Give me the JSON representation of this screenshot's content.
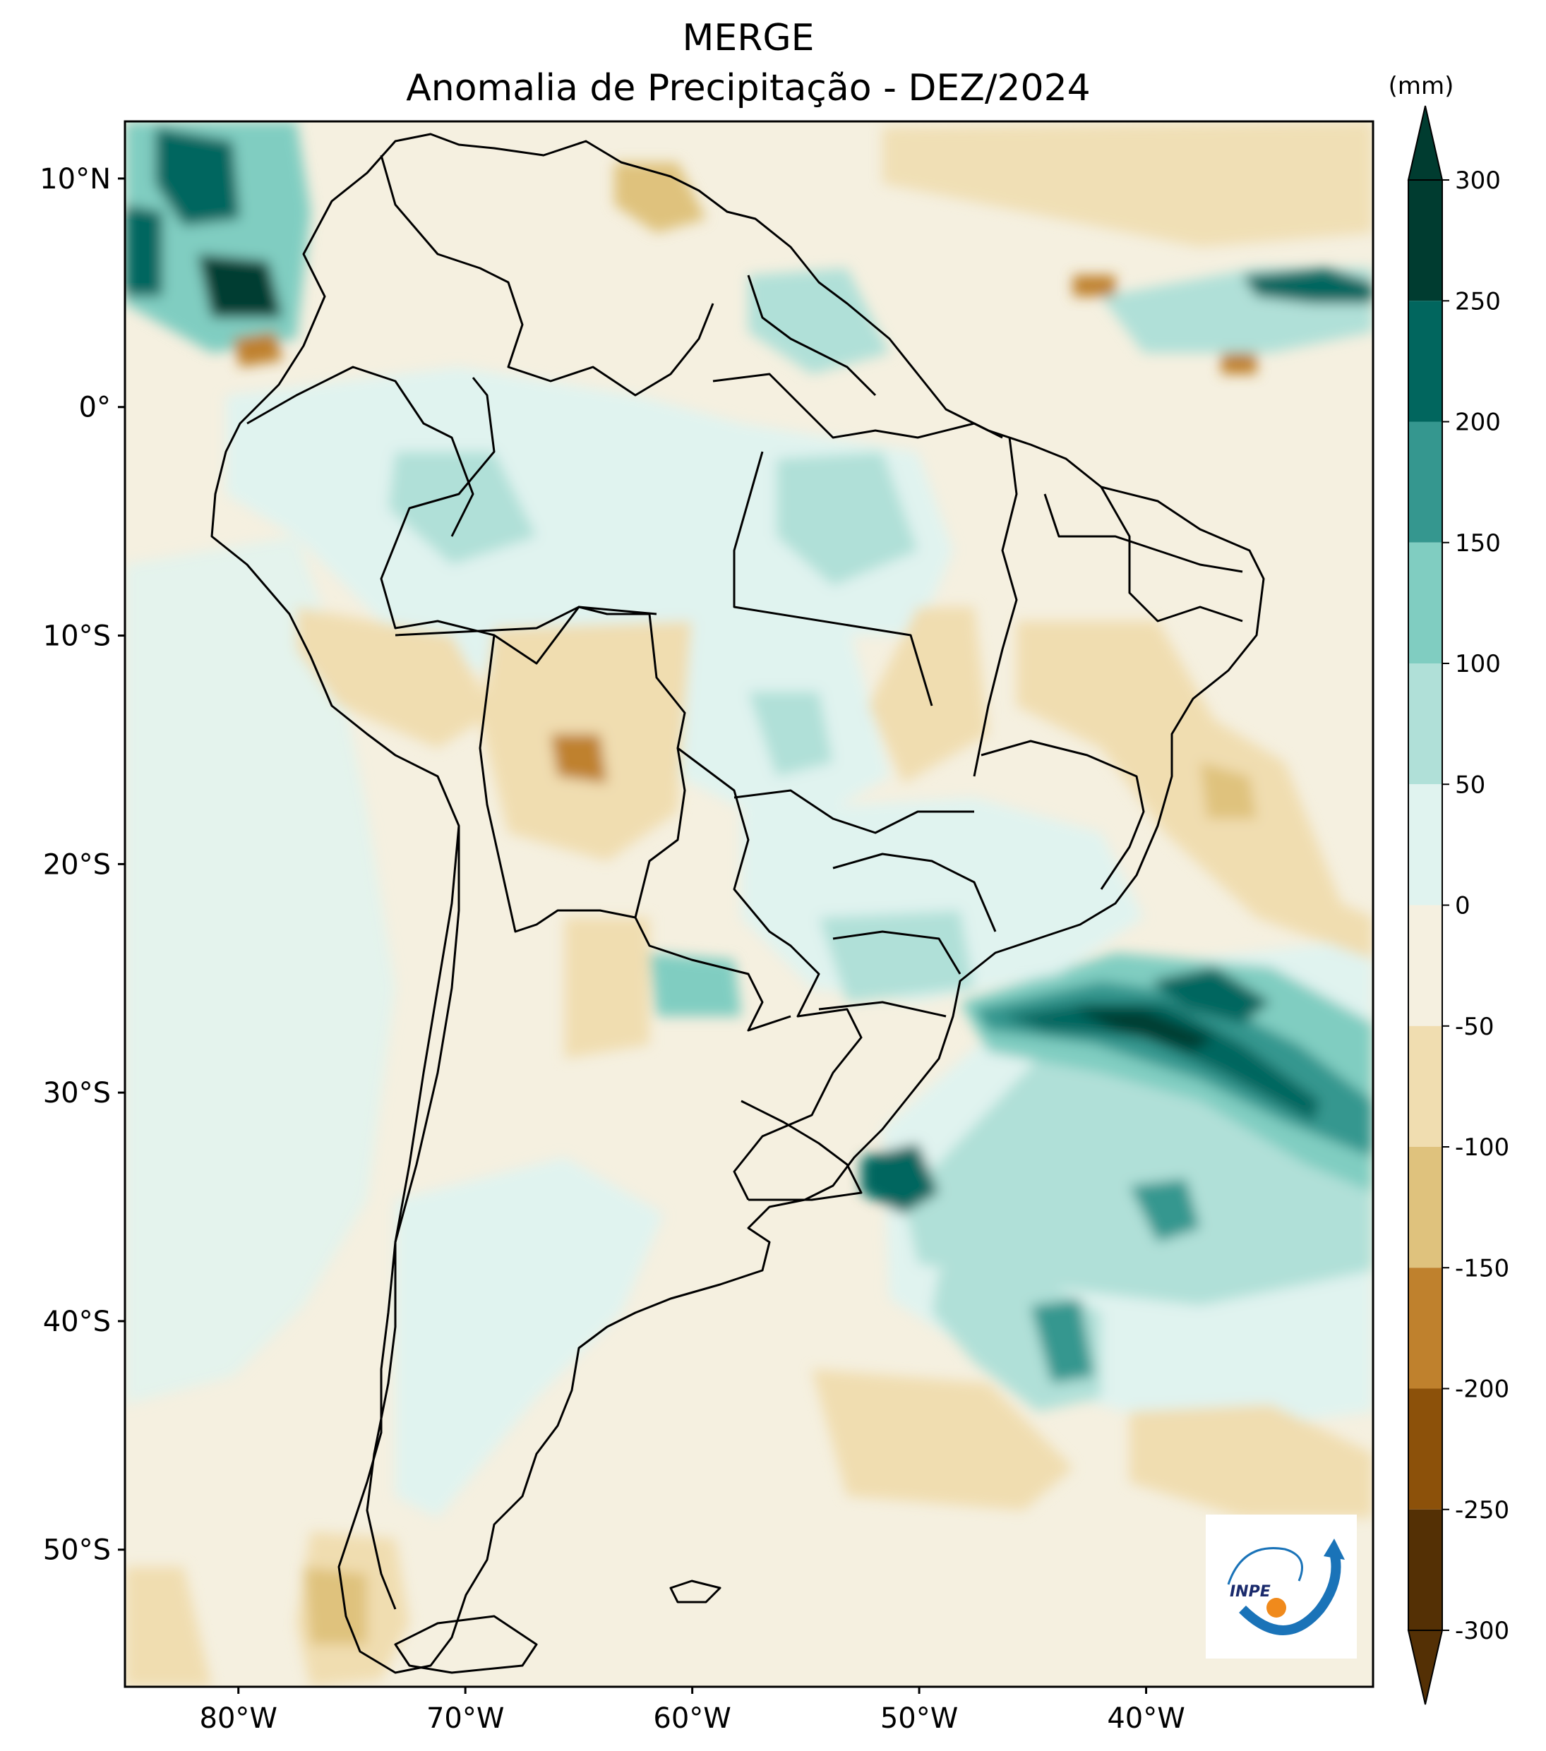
{
  "title": {
    "line1": "MERGE",
    "line2": "Anomalia de Precipitação - DEZ/2024"
  },
  "map": {
    "region": "South America",
    "lat_range": [
      -56,
      12.5
    ],
    "lon_range": [
      -85,
      -30
    ],
    "lat_ticks": [
      {
        "value": 10,
        "label": "10°N"
      },
      {
        "value": 0,
        "label": "0°"
      },
      {
        "value": -10,
        "label": "10°S"
      },
      {
        "value": -20,
        "label": "20°S"
      },
      {
        "value": -30,
        "label": "30°S"
      },
      {
        "value": -40,
        "label": "40°S"
      },
      {
        "value": -50,
        "label": "50°S"
      }
    ],
    "lon_ticks": [
      {
        "value": -80,
        "label": "80°W"
      },
      {
        "value": -70,
        "label": "70°W"
      },
      {
        "value": -60,
        "label": "60°W"
      },
      {
        "value": -50,
        "label": "50°W"
      },
      {
        "value": -40,
        "label": "40°W"
      }
    ]
  },
  "colorbar": {
    "units": "(mm)",
    "levels": [
      300,
      250,
      200,
      150,
      100,
      50,
      0,
      -50,
      -100,
      -150,
      -200,
      -250,
      -300
    ],
    "colors": [
      "#003c30",
      "#01665e",
      "#35978f",
      "#80cdc1",
      "#b0e0d8",
      "#e0f3ef",
      "#f5f0e0",
      "#f0ddb0",
      "#dfc27d",
      "#bf812d",
      "#8c510a",
      "#543005"
    ],
    "labels": [
      "300",
      "250",
      "200",
      "150",
      "100",
      "50",
      "0",
      "-50",
      "-100",
      "-150",
      "-200",
      "-250",
      "-300"
    ]
  },
  "logo": {
    "text": "INPE"
  }
}
